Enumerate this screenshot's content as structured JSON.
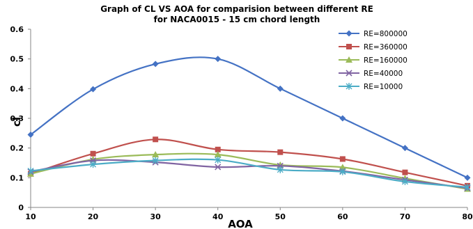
{
  "chart_data": {
    "type": "line",
    "title": "Graph of CL VS AOA for comparision between different RE",
    "subtitle": "for NACA0015 - 15 cm chord length",
    "xlabel": "AOA",
    "ylabel": "cl",
    "xlim": [
      10,
      80
    ],
    "ylim": [
      0,
      0.6
    ],
    "xticks": [
      "10",
      "20",
      "30",
      "40",
      "50",
      "60",
      "70",
      "80"
    ],
    "yticks": [
      "0",
      "0.1",
      "0.2",
      "0.3",
      "0.4",
      "0.5",
      "0.6"
    ],
    "grid": false,
    "smooth": true,
    "legend_position": "top-right",
    "x": [
      10,
      20,
      30,
      40,
      50,
      60,
      70,
      80
    ],
    "series": [
      {
        "name": "RE=800000",
        "color": "#4472c4",
        "marker": "diamond",
        "values": [
          0.245,
          0.398,
          0.483,
          0.5,
          0.4,
          0.3,
          0.2,
          0.1
        ]
      },
      {
        "name": "RE=360000",
        "color": "#c0504d",
        "marker": "square",
        "values": [
          0.113,
          0.181,
          0.229,
          0.195,
          0.186,
          0.163,
          0.118,
          0.073
        ]
      },
      {
        "name": "RE=160000",
        "color": "#9bbb59",
        "marker": "triangle",
        "values": [
          0.113,
          0.162,
          0.178,
          0.178,
          0.143,
          0.135,
          0.098,
          0.062
        ]
      },
      {
        "name": "RE=40000",
        "color": "#8064a2",
        "marker": "x",
        "values": [
          0.12,
          0.158,
          0.152,
          0.136,
          0.14,
          0.122,
          0.093,
          0.065
        ]
      },
      {
        "name": "RE=10000",
        "color": "#4bacc6",
        "marker": "star",
        "values": [
          0.123,
          0.145,
          0.158,
          0.16,
          0.127,
          0.12,
          0.087,
          0.068
        ]
      }
    ]
  }
}
